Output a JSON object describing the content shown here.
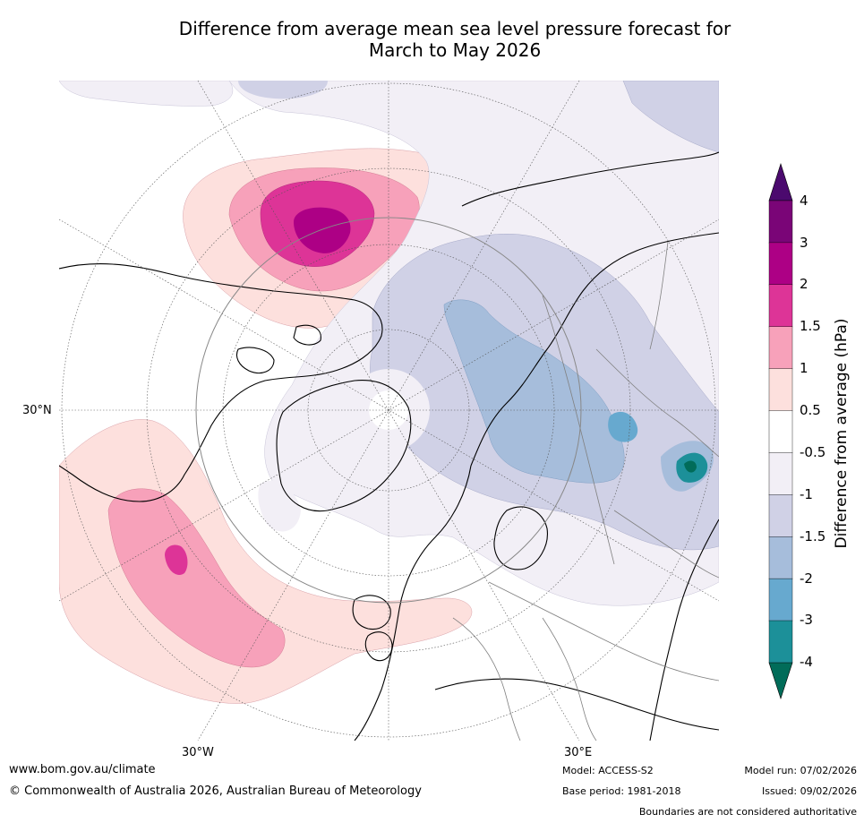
{
  "title": {
    "line1": "Difference from average mean sea level pressure forecast for",
    "line2": "March to May 2026"
  },
  "map": {
    "projection": "North polar stereographic",
    "lat_label_30N": "30°N",
    "lon_label_30W": "30°W",
    "lon_label_30E": "30°E"
  },
  "colorbar": {
    "title": "Difference from average (hPa)",
    "labels": [
      "4",
      "3",
      "2",
      "1.5",
      "1",
      "0.5",
      "-0.5",
      "-1",
      "-1.5",
      "-2",
      "-3",
      "-4"
    ],
    "colors": {
      "above_4": "#4b0a6e",
      "3_to_4": "#7a0577",
      "2_to_3": "#ad0085",
      "1.5_to_2": "#dd3497",
      "1_to_1.5": "#f7a1ba",
      "0.5_to_1": "#fde0dd",
      "-0.5_to_0.5": "#ffffff",
      "-1_to_-0.5": "#f2eff6",
      "-1.5_to_-1": "#d0d1e6",
      "-2_to_-1.5": "#a6bddb",
      "-3_to_-2": "#67a9cf",
      "-4_to_-3": "#1c9099",
      "below_-4": "#016c59"
    }
  },
  "footer": {
    "website": "www.bom.gov.au/climate",
    "copyright": "© Commonwealth of Australia 2026, Australian Bureau of Meteorology",
    "model": "Model: ACCESS-S2",
    "base_period": "Base period: 1981-2018",
    "model_run": "Model run: 07/02/2026",
    "issued": "Issued: 09/02/2026",
    "boundaries": "Boundaries are not considered authoritative"
  }
}
